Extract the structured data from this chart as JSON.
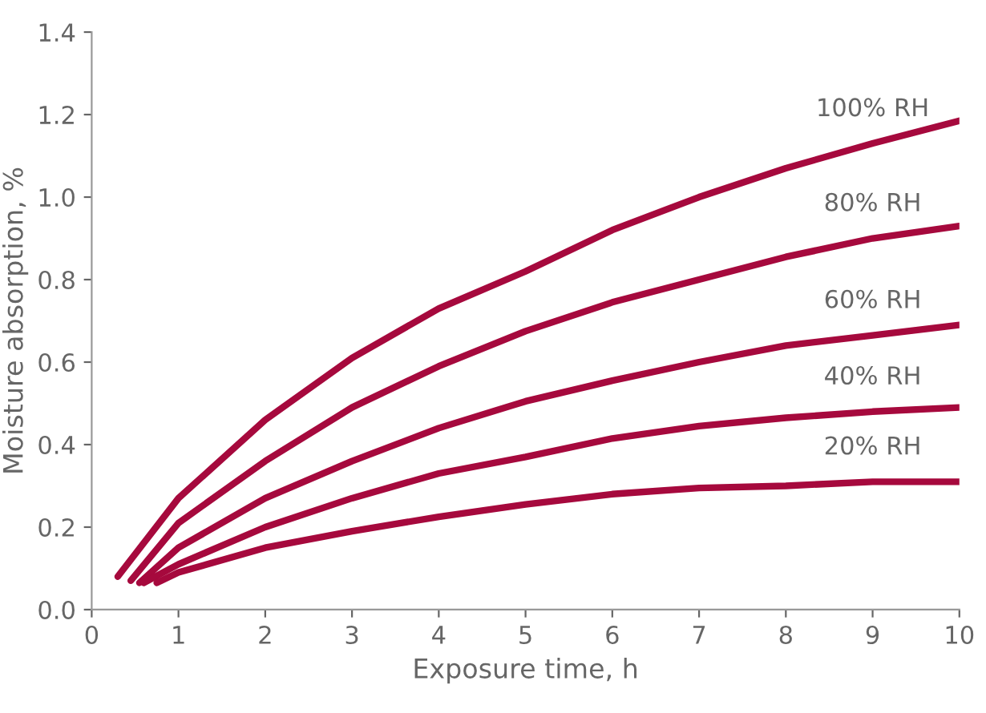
{
  "chart_data": {
    "type": "line",
    "xlabel": "Exposure time, h",
    "ylabel": "Moisture absorption, %",
    "xlim": [
      0,
      10
    ],
    "ylim": [
      0,
      1.4
    ],
    "xticks": [
      0,
      1,
      2,
      3,
      4,
      5,
      6,
      7,
      8,
      9,
      10
    ],
    "yticks": [
      {
        "value": 0,
        "label": "0.0"
      },
      {
        "value": 0.2,
        "label": "0.2"
      },
      {
        "value": 0.4,
        "label": "0.4"
      },
      {
        "value": 0.6,
        "label": "0.6"
      },
      {
        "value": 0.8,
        "label": "0.8"
      },
      {
        "value": 1.0,
        "label": "1.0"
      },
      {
        "value": 1.2,
        "label": "1.2"
      },
      {
        "value": 1.4,
        "label": "1.4"
      }
    ],
    "grid": false,
    "legend": false,
    "marker": "none",
    "line_style": "solid",
    "series": [
      {
        "name": "100% RH",
        "color": "#a6093d",
        "x": [
          0.3,
          1,
          2,
          3,
          4,
          5,
          6,
          7,
          8,
          9,
          10
        ],
        "values": [
          0.08,
          0.27,
          0.46,
          0.61,
          0.73,
          0.82,
          0.92,
          1.0,
          1.07,
          1.13,
          1.185
        ]
      },
      {
        "name": "80% RH",
        "color": "#a6093d",
        "x": [
          0.45,
          1,
          2,
          3,
          4,
          5,
          6,
          7,
          8,
          9,
          10
        ],
        "values": [
          0.07,
          0.21,
          0.36,
          0.49,
          0.59,
          0.675,
          0.745,
          0.8,
          0.855,
          0.9,
          0.93
        ]
      },
      {
        "name": "60% RH",
        "color": "#a6093d",
        "x": [
          0.55,
          1,
          2,
          3,
          4,
          5,
          6,
          7,
          8,
          9,
          10
        ],
        "values": [
          0.065,
          0.15,
          0.27,
          0.36,
          0.44,
          0.505,
          0.555,
          0.6,
          0.64,
          0.665,
          0.69
        ]
      },
      {
        "name": "40% RH",
        "color": "#a6093d",
        "x": [
          0.6,
          1,
          2,
          3,
          4,
          5,
          6,
          7,
          8,
          9,
          10
        ],
        "values": [
          0.065,
          0.11,
          0.2,
          0.27,
          0.33,
          0.37,
          0.415,
          0.445,
          0.465,
          0.48,
          0.49
        ]
      },
      {
        "name": "20% RH",
        "color": "#a6093d",
        "x": [
          0.75,
          1,
          2,
          3,
          4,
          5,
          6,
          7,
          8,
          9,
          10
        ],
        "values": [
          0.065,
          0.09,
          0.15,
          0.19,
          0.225,
          0.255,
          0.28,
          0.295,
          0.3,
          0.31,
          0.31
        ]
      }
    ]
  }
}
